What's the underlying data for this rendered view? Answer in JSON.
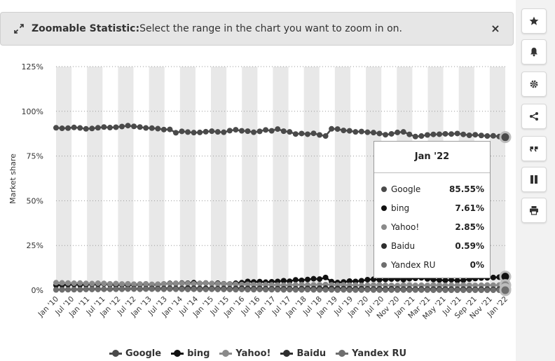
{
  "banner": {
    "title": "Zoomable Statistic:",
    "message": "Select the range in the chart you want to zoom in on.",
    "close_label": "×"
  },
  "toolbar": {
    "buttons": [
      {
        "name": "favorite-button",
        "icon": "star-icon"
      },
      {
        "name": "notification-button",
        "icon": "bell-icon"
      },
      {
        "name": "settings-button",
        "icon": "gear-icon"
      },
      {
        "name": "share-button",
        "icon": "share-icon"
      },
      {
        "name": "cite-button",
        "icon": "quote-icon"
      },
      {
        "name": "pause-button",
        "icon": "pause-icon"
      },
      {
        "name": "print-button",
        "icon": "print-icon"
      }
    ]
  },
  "tooltip": {
    "title": "Jan '22",
    "rows": [
      {
        "name": "Google",
        "value": "85.55%",
        "color": "#4a4a4a"
      },
      {
        "name": "bing",
        "value": "7.61%",
        "color": "#111111"
      },
      {
        "name": "Yahoo!",
        "value": "2.85%",
        "color": "#8a8a8a"
      },
      {
        "name": "Baidu",
        "value": "0.59%",
        "color": "#2e2e2e"
      },
      {
        "name": "Yandex RU",
        "value": "0%",
        "color": "#6e6e6e"
      }
    ]
  },
  "chart_data": {
    "type": "line",
    "ylabel": "Market share",
    "ylim": [
      0,
      125
    ],
    "yticks": [
      0,
      25,
      50,
      75,
      100,
      125
    ],
    "ytick_labels": [
      "0%",
      "25%",
      "50%",
      "75%",
      "100%",
      "125%"
    ],
    "x_labels": [
      "Jan '10",
      "Jul '10",
      "Jan '11",
      "Jul '11",
      "Jan '12",
      "Jul '12",
      "Jan '13",
      "Jul '13",
      "Jan '14",
      "Jul '14",
      "Jan '15",
      "Jul '15",
      "Jan '16",
      "Jul '16",
      "Jan '17",
      "Jul '17",
      "Jan '18",
      "Jul '18",
      "Jan '19",
      "Jul '19",
      "Jan '20",
      "Jul '20",
      "Nov '20",
      "Jan '21",
      "Mar '21",
      "May '21",
      "Jul '21",
      "Sep '21",
      "Nov '21",
      "Jan '22"
    ],
    "grid": "alternating vertical bands, dotted horizontal gridlines",
    "legend_position": "bottom-center",
    "series": [
      {
        "name": "Google",
        "color": "#4a4a4a",
        "values": [
          90.8,
          90.5,
          90.6,
          91,
          90.7,
          90.2,
          90.4,
          90.8,
          91.2,
          90.9,
          91.1,
          91.5,
          92,
          91.6,
          91.2,
          90.7,
          90.6,
          90.3,
          89.8,
          89.9,
          88,
          88.8,
          88.4,
          88.1,
          88.2,
          88.6,
          88.9,
          88.5,
          88.3,
          89.2,
          89.7,
          89.1,
          88.9,
          88.3,
          88.8,
          89.6,
          89.1,
          90.1,
          88.9,
          88.5,
          87.3,
          87.6,
          87.2,
          87.7,
          86.8,
          86.2,
          90.2,
          90.1,
          89.3,
          89.1,
          88.5,
          88.7,
          88.3,
          88.1,
          87.6,
          86.9,
          87.4,
          88.2,
          88.5,
          87.1,
          85.9,
          86.2,
          86.8,
          87.1,
          87.2,
          87.4,
          87.3,
          87.6,
          87.1,
          86.6,
          86.9,
          86.5,
          86.2,
          86.3,
          85.9,
          85.55
        ]
      },
      {
        "name": "bing",
        "color": "#111111",
        "values": [
          2.8,
          2.9,
          3.1,
          3.2,
          3.0,
          3.1,
          3.3,
          3.3,
          3.5,
          3.2,
          3.0,
          3.1,
          2.9,
          3.0,
          3.2,
          3.3,
          3.1,
          3.2,
          3.5,
          3.8,
          3.7,
          4.0,
          3.9,
          4.2,
          3.8,
          4.0,
          3.7,
          3.9,
          3.6,
          3.5,
          3.9,
          4.2,
          4.9,
          4.6,
          4.8,
          4.5,
          4.7,
          4.9,
          5.3,
          5.0,
          5.8,
          5.5,
          6.0,
          6.4,
          6.2,
          7.1,
          4.8,
          4.3,
          4.6,
          5.1,
          4.9,
          5.3,
          5.9,
          6.1,
          5.8,
          6.0,
          6.2,
          6.3,
          5.9,
          6.4,
          6.6,
          6.9,
          6.3,
          6.0,
          5.7,
          5.5,
          5.8,
          5.4,
          5.6,
          6.2,
          6.5,
          6.8,
          6.9,
          7.1,
          7.3,
          7.61
        ]
      },
      {
        "name": "Yahoo!",
        "color": "#8a8a8a",
        "values": [
          4.2,
          4.1,
          4.0,
          3.9,
          4.0,
          3.8,
          3.7,
          3.9,
          3.8,
          3.6,
          3.7,
          3.5,
          3.6,
          3.4,
          3.5,
          3.6,
          3.3,
          3.4,
          3.5,
          3.6,
          3.9,
          3.8,
          3.7,
          3.6,
          3.8,
          3.9,
          3.7,
          3.6,
          3.5,
          3.4,
          3.3,
          3.2,
          3.3,
          3.1,
          3.0,
          3.1,
          3.0,
          2.9,
          2.8,
          2.9,
          3.0,
          3.1,
          2.9,
          3.0,
          3.1,
          3.2,
          3.0,
          2.9,
          3.0,
          2.8,
          2.9,
          2.7,
          2.8,
          2.9,
          3.0,
          2.8,
          2.7,
          2.6,
          2.8,
          2.9,
          2.7,
          2.8,
          2.7,
          2.9,
          2.8,
          2.7,
          2.9,
          2.8,
          2.9,
          2.8,
          2.7,
          2.8,
          2.9,
          2.8,
          2.9,
          2.85
        ]
      },
      {
        "name": "Baidu",
        "color": "#2e2e2e",
        "values": [
          0.3,
          0.4,
          0.4,
          0.5,
          0.5,
          0.6,
          0.6,
          0.7,
          0.6,
          0.7,
          0.8,
          0.7,
          0.8,
          0.9,
          0.8,
          0.9,
          1.0,
          0.9,
          1.0,
          1.1,
          1.0,
          1.0,
          1.2,
          1.1,
          1.0,
          1.1,
          1.0,
          0.9,
          1.0,
          0.9,
          1.0,
          1.1,
          1.0,
          0.9,
          1.0,
          0.9,
          0.8,
          0.9,
          0.8,
          0.9,
          0.8,
          0.9,
          1.0,
          0.9,
          1.1,
          1.2,
          1.0,
          1.0,
          0.9,
          0.9,
          0.8,
          0.9,
          0.8,
          0.7,
          0.8,
          0.7,
          0.8,
          0.7,
          0.6,
          0.7,
          0.6,
          0.7,
          0.6,
          0.6,
          0.7,
          0.6,
          0.6,
          0.5,
          0.6,
          0.6,
          0.5,
          0.6,
          0.6,
          0.5,
          0.6,
          0.59
        ]
      },
      {
        "name": "Yandex RU",
        "color": "#6e6e6e",
        "values": [
          0.2,
          0.2,
          0.3,
          0.3,
          0.3,
          0.4,
          0.4,
          0.4,
          0.5,
          0.5,
          0.5,
          0.5,
          0.6,
          0.6,
          0.5,
          0.6,
          0.6,
          0.5,
          0.5,
          0.6,
          0.5,
          0.5,
          0.4,
          0.5,
          0.4,
          0.4,
          0.5,
          0.4,
          0.4,
          0.4,
          0.3,
          0.4,
          0.3,
          0.3,
          0.4,
          0.3,
          0.3,
          0.3,
          0.2,
          0.3,
          0.2,
          0.2,
          0.3,
          0.2,
          0.2,
          0.2,
          0.2,
          0.1,
          0.2,
          0.1,
          0.1,
          0.1,
          0.2,
          0.1,
          0.1,
          0.1,
          0.1,
          0.1,
          0.1,
          0.1,
          0.1,
          0.1,
          0.1,
          0.0,
          0.1,
          0.0,
          0.0,
          0.0,
          0.0,
          0.0,
          0.0,
          0.0,
          0.0,
          0.0,
          0.0,
          0.0
        ]
      }
    ]
  }
}
